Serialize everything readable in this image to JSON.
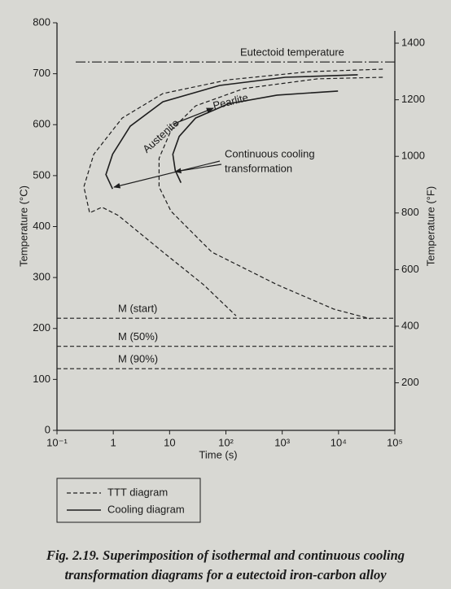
{
  "chart_data": {
    "type": "line",
    "xlabel": "Time (s)",
    "ylabel": "Temperature (°C)",
    "y2label": "Temperature (°F)",
    "log_x": true,
    "xlim": [
      0.1,
      100000
    ],
    "xticks": [
      {
        "value": 0.1,
        "label": "10⁻¹"
      },
      1,
      10,
      {
        "value": 100,
        "label": "10²"
      },
      {
        "value": 1000,
        "label": "10³"
      },
      {
        "value": 10000,
        "label": "10⁴"
      },
      {
        "value": 100000,
        "label": "10⁵"
      }
    ],
    "ylim": [
      0,
      800
    ],
    "yticks": [
      0,
      100,
      200,
      300,
      400,
      500,
      600,
      700,
      800
    ],
    "y2lim": [
      32,
      1472
    ],
    "y2ticks": [
      200,
      400,
      600,
      800,
      1000,
      1200,
      1400
    ],
    "color": "#1e1e1e",
    "series": [
      {
        "style": "dashed",
        "x": [
          61000,
          3000,
          110,
          7.6,
          1.44,
          0.45,
          0.3,
          0.38,
          0.63,
          1.22,
          7.6,
          40,
          151
        ],
        "values": [
          709,
          704,
          688,
          661,
          613,
          542,
          478,
          427,
          438,
          422,
          350,
          286,
          225
        ]
      },
      {
        "style": "dashed",
        "x": [
          61000,
          4250,
          210,
          29,
          10.6,
          6.5,
          6.5,
          10.6,
          56,
          810,
          8300,
          37000
        ],
        "values": [
          693,
          690,
          671,
          637,
          589,
          534,
          478,
          430,
          350,
          286,
          238,
          219
        ]
      },
      {
        "style": "solid",
        "x": [
          22000,
          1130,
          78,
          7.6,
          2.0,
          0.97,
          0.74,
          0.97
        ],
        "values": [
          698,
          693,
          677,
          645,
          597,
          542,
          502,
          474
        ]
      },
      {
        "style": "solid",
        "x": [
          9800,
          810,
          110,
          29,
          14.8,
          11.4,
          12.6,
          15.9
        ],
        "values": [
          666,
          658,
          641,
          613,
          577,
          542,
          510,
          486
        ]
      }
    ],
    "hlines": [
      {
        "label": "Eutectoid temperature",
        "value": 723,
        "style": "dashdot"
      },
      {
        "label": "M (start)",
        "value": 220,
        "style": "dashed"
      },
      {
        "label": "M (50%)",
        "value": 165,
        "style": "dashed"
      },
      {
        "label": "M (90%)",
        "value": 121,
        "style": "dashed"
      }
    ],
    "annotations": {
      "pearlite": "Pearlite",
      "austenite": "Austenite",
      "cct": [
        "Continuous cooling",
        "transformation"
      ]
    },
    "legend": [
      {
        "label": "TTT diagram",
        "style": "dashed"
      },
      {
        "label": "Cooling diagram",
        "style": "solid"
      }
    ]
  },
  "caption": "Fig. 2.19. Superimposition of isothermal and continuous cooling transformation diagrams for a eutectoid iron-carbon alloy"
}
